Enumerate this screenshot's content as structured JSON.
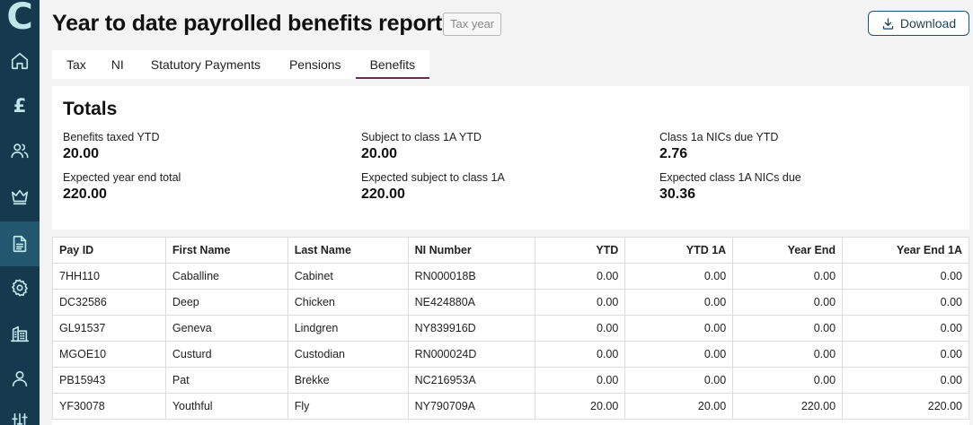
{
  "app": {
    "logo_letter": "C"
  },
  "sidebar": {
    "items": [
      {
        "name": "home",
        "icon": "home-icon"
      },
      {
        "name": "pay",
        "icon": "pound-icon",
        "glyph": "£"
      },
      {
        "name": "employees",
        "icon": "users-icon"
      },
      {
        "name": "benefits",
        "icon": "crown-icon"
      },
      {
        "name": "reports",
        "icon": "document-icon",
        "active": true
      },
      {
        "name": "settings",
        "icon": "gear-icon"
      },
      {
        "name": "company",
        "icon": "building-icon"
      },
      {
        "name": "account",
        "icon": "user-icon"
      },
      {
        "name": "adjustments",
        "icon": "sliders-icon"
      }
    ]
  },
  "header": {
    "title": "Year to date payrolled benefits report",
    "tax_year_label": "Tax year",
    "download_label": "Download"
  },
  "tabs": [
    {
      "label": "Tax"
    },
    {
      "label": "NI"
    },
    {
      "label": "Statutory Payments"
    },
    {
      "label": "Pensions"
    },
    {
      "label": "Benefits",
      "active": true
    }
  ],
  "totals": {
    "heading": "Totals",
    "benefits_taxed_ytd": {
      "label": "Benefits taxed YTD",
      "value": "20.00"
    },
    "subject_class_1a_ytd": {
      "label": "Subject to class 1A YTD",
      "value": "20.00"
    },
    "class_1a_nics_due_ytd": {
      "label": "Class 1a NICs due YTD",
      "value": "2.76"
    },
    "expected_year_end_total": {
      "label": "Expected year end total",
      "value": "220.00"
    },
    "expected_subject_class_1a": {
      "label": "Expected subject to class 1A",
      "value": "220.00"
    },
    "expected_class_1a_nics_due": {
      "label": "Expected class 1A NICs due",
      "value": "30.36"
    }
  },
  "table": {
    "columns": [
      "Pay ID",
      "First Name",
      "Last Name",
      "NI Number",
      "YTD",
      "YTD 1A",
      "Year End",
      "Year End 1A"
    ],
    "rows": [
      [
        "7HH110",
        "Caballine",
        "Cabinet",
        "RN000018B",
        "0.00",
        "0.00",
        "0.00",
        "0.00"
      ],
      [
        "DC32586",
        "Deep",
        "Chicken",
        "NE424880A",
        "0.00",
        "0.00",
        "0.00",
        "0.00"
      ],
      [
        "GL91537",
        "Geneva",
        "Lindgren",
        "NY839916D",
        "0.00",
        "0.00",
        "0.00",
        "0.00"
      ],
      [
        "MGOE10",
        "Custurd",
        "Custodian",
        "RN000024D",
        "0.00",
        "0.00",
        "0.00",
        "0.00"
      ],
      [
        "PB15943",
        "Pat",
        "Brekke",
        "NC216953A",
        "0.00",
        "0.00",
        "0.00",
        "0.00"
      ],
      [
        "YF30078",
        "Youthful",
        "Fly",
        "NY790709A",
        "20.00",
        "20.00",
        "220.00",
        "220.00"
      ]
    ]
  },
  "colors": {
    "sidebar_bg": "#163a4d",
    "sidebar_active": "#23566f",
    "sidebar_icon": "#bfe7ea",
    "tab_active_underline": "#6b2a57",
    "button_border": "#2d5266"
  }
}
